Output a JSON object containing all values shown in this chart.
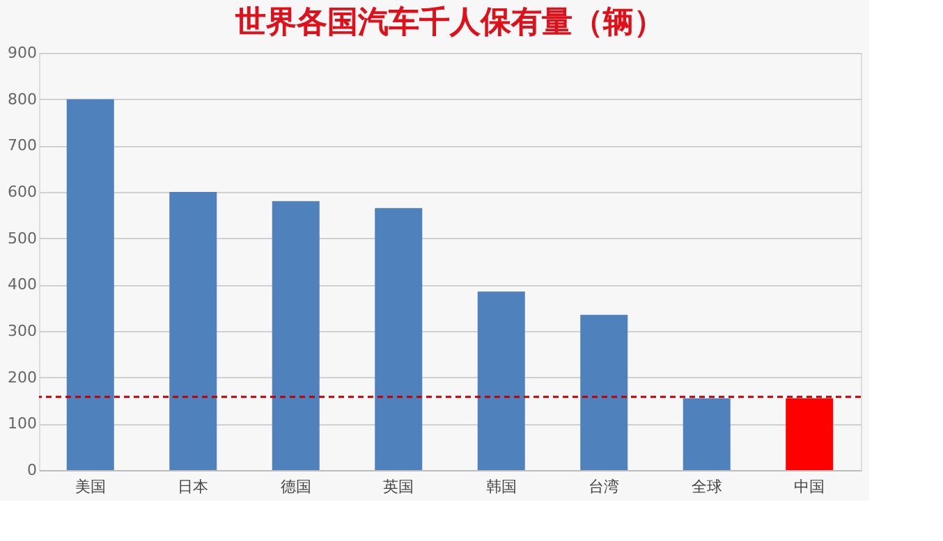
{
  "chart_data": {
    "type": "bar",
    "title": "世界各国汽车千人保有量（辆）",
    "categories": [
      "美国",
      "日本",
      "德国",
      "英国",
      "韩国",
      "台湾",
      "全球",
      "中国"
    ],
    "values": [
      800,
      600,
      580,
      565,
      385,
      335,
      155,
      155
    ],
    "colors": [
      "#4f81bd",
      "#4f81bd",
      "#4f81bd",
      "#4f81bd",
      "#4f81bd",
      "#4f81bd",
      "#4f81bd",
      "#ff0000"
    ],
    "ylim": [
      0,
      900
    ],
    "yticks": [
      0,
      100,
      200,
      300,
      400,
      500,
      600,
      700,
      800,
      900
    ],
    "grid": "y",
    "ref_lines": [
      {
        "axis": "y",
        "value": 158,
        "color": "#c00000",
        "line_style": "dashed"
      }
    ]
  }
}
